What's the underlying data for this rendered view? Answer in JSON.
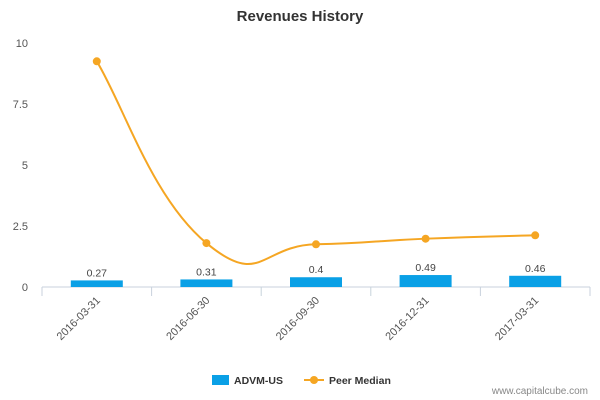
{
  "chart_data": {
    "type": "bar",
    "title": "Revenues History",
    "categories": [
      "2016-03-31",
      "2016-06-30",
      "2016-09-30",
      "2016-12-31",
      "2017-03-31"
    ],
    "series": [
      {
        "name": "ADVM-US",
        "type": "bar",
        "color": "#0aa0e6",
        "values": [
          0.27,
          0.31,
          0.4,
          0.49,
          0.46
        ],
        "labels": [
          "0.27",
          "0.31",
          "0.4",
          "0.49",
          "0.46"
        ]
      },
      {
        "name": "Peer Median",
        "type": "line",
        "color": "#f5a623",
        "values": [
          9.25,
          1.8,
          1.75,
          1.98,
          2.12
        ]
      }
    ],
    "ylim": [
      0,
      10
    ],
    "yticks": [
      {
        "value": 0,
        "label": "0"
      },
      {
        "value": 2.5,
        "label": "2.5"
      },
      {
        "value": 5,
        "label": "5"
      },
      {
        "value": 7.5,
        "label": "7.5"
      },
      {
        "value": 10,
        "label": "10"
      }
    ],
    "grid": false,
    "legend": "bottom-center"
  },
  "watermark": "www.capitalcube.com"
}
